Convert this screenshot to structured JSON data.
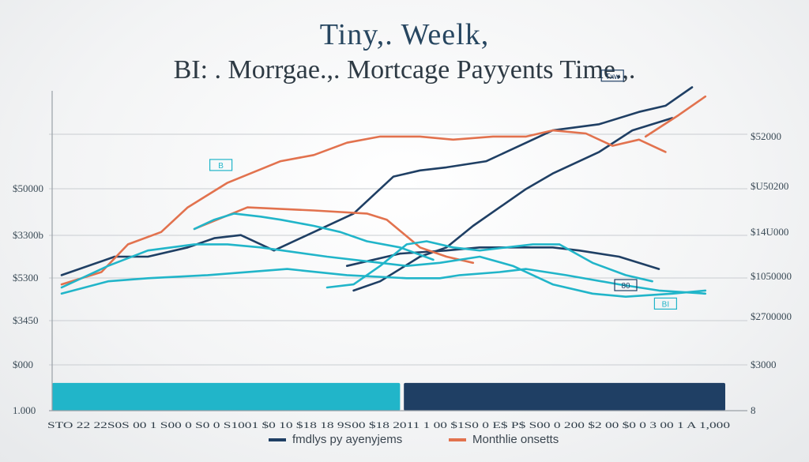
{
  "title_line1": "Tiny,. Weelk,",
  "title_line2": "BI: . Morrgae.,.  Mortcage Payyents Time.,.",
  "colors": {
    "navy": "#1f3f64",
    "orange": "#e2724e",
    "cyan": "#21b5c9",
    "grid": "#c9cdd1",
    "axis": "#9aa1a7"
  },
  "legend": [
    {
      "label": "fmdlys py ayenyjems",
      "color": "#1f3f64"
    },
    {
      "label": "Monthlie onsetts",
      "color": "#e2724e"
    }
  ],
  "chart_data": {
    "type": "line",
    "y_left_ticks": [
      "$50000",
      "$3300b",
      "$5300",
      "$3450",
      "$000",
      "1.000"
    ],
    "y_right_ticks": [
      "$52000",
      "$U50200",
      "$14U000",
      "$1050000",
      "$2700000",
      "$3000",
      "8"
    ],
    "x_tick_text": "STO 22 22S0S 00 1 S00 0 S0 0 S1001 $0 10 $18 18 9S00 $18 2011 1 00 $1S0 0 E$ P$ S00 0 200 $2 00 $0 0 3 00 1 A 1,000",
    "ylim": [
      0,
      100
    ],
    "xlim": [
      0,
      100
    ],
    "bars": [
      {
        "name": "bar-left",
        "color": "#21b5c9",
        "x0": 0,
        "x1": 51,
        "value": 9
      },
      {
        "name": "bar-right",
        "color": "#1f3f64",
        "x0": 53,
        "x1": 100,
        "value": 9
      }
    ],
    "series": [
      {
        "color": "#1f3f64",
        "x": [
          0,
          8,
          13,
          19,
          23,
          27,
          32,
          39,
          44,
          50,
          54,
          58,
          64,
          70,
          74,
          81,
          87,
          91,
          95
        ],
        "y": [
          44,
          50,
          50,
          53,
          56,
          57,
          52,
          59,
          64,
          76,
          78,
          79,
          81,
          87,
          91,
          93,
          97,
          99,
          105
        ]
      },
      {
        "color": "#1f3f64",
        "x": [
          44,
          48,
          54,
          58,
          62,
          66,
          70,
          74,
          81,
          86,
          92
        ],
        "y": [
          39,
          42,
          50,
          53,
          60,
          66,
          72,
          77,
          84,
          91,
          95
        ]
      },
      {
        "color": "#1f3f64",
        "x": [
          43,
          51,
          58,
          63,
          68,
          74,
          78,
          84,
          90
        ],
        "y": [
          47,
          51,
          52,
          53,
          53,
          53,
          52,
          50,
          46
        ]
      },
      {
        "color": "#e2724e",
        "x": [
          0,
          6,
          10,
          15,
          19,
          25,
          33,
          38,
          43,
          48,
          54,
          59,
          65,
          70,
          74,
          79,
          83,
          87,
          91
        ],
        "y": [
          41,
          45,
          54,
          58,
          66,
          74,
          81,
          83,
          87,
          89,
          89,
          88,
          89,
          89,
          91,
          90,
          86,
          88,
          84
        ]
      },
      {
        "color": "#e2724e",
        "x": [
          20,
          28,
          38,
          46,
          49,
          54,
          58,
          62
        ],
        "y": [
          59,
          66,
          65,
          64,
          62,
          53,
          50,
          48
        ]
      },
      {
        "color": "#e2724e",
        "x": [
          88,
          93,
          97
        ],
        "y": [
          89,
          96,
          102
        ]
      },
      {
        "color": "#21b5c9",
        "x": [
          0,
          7,
          13,
          20,
          25,
          30,
          40,
          48,
          52,
          57,
          63,
          68,
          74,
          80,
          85,
          92,
          97
        ],
        "y": [
          40,
          47,
          52,
          54,
          54,
          53,
          50,
          48,
          47,
          48,
          50,
          47,
          41,
          38,
          37,
          38,
          39
        ]
      },
      {
        "color": "#21b5c9",
        "x": [
          0,
          7,
          13,
          22,
          34,
          43,
          52,
          57,
          60,
          66,
          70,
          76,
          84,
          90,
          97
        ],
        "y": [
          38,
          42,
          43,
          44,
          46,
          44,
          43,
          43,
          44,
          45,
          46,
          44,
          41,
          39,
          38
        ]
      },
      {
        "color": "#21b5c9",
        "x": [
          40,
          44,
          48,
          52,
          55,
          59,
          63,
          67,
          71,
          75,
          80,
          85,
          89
        ],
        "y": [
          40,
          41,
          47,
          54,
          55,
          53,
          52,
          53,
          54,
          54,
          48,
          44,
          42
        ]
      },
      {
        "color": "#21b5c9",
        "x": [
          20,
          23,
          26,
          30,
          33,
          38,
          42,
          46,
          51,
          56
        ],
        "y": [
          59,
          62,
          64,
          63,
          62,
          60,
          58,
          55,
          53,
          49
        ]
      }
    ],
    "annotations": [
      {
        "text": "Txw",
        "x": 83,
        "y": 108,
        "color": "#1f3f64"
      },
      {
        "text": "B",
        "x": 24,
        "y": 79,
        "color": "#21b5c9"
      },
      {
        "text": "80",
        "x": 85,
        "y": 40,
        "color": "#1f3f64"
      },
      {
        "text": "BI",
        "x": 91,
        "y": 34,
        "color": "#21b5c9"
      }
    ]
  }
}
